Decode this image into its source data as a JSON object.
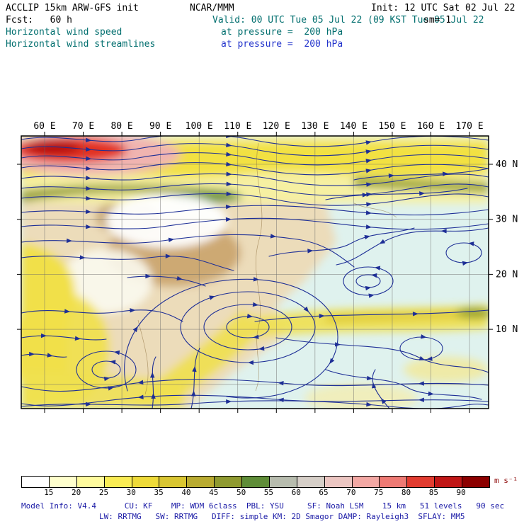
{
  "header": {
    "model": "ACCLIP 15km ARW-GFS init",
    "fcst": "Fcst:   60 h",
    "field1": "Horizontal wind speed",
    "field2": "Horizontal wind streamlines",
    "org": "NCAR/MMM",
    "valid": "Valid: 00 UTC Tue 05 Jul 22 (09 KST Tue 05 Jul 22",
    "at_pressure1": "at pressure =  200 hPa",
    "at_pressure2": "at pressure =  200 hPa",
    "init": "Init: 12 UTC Sat 02 Jul 22",
    "sm": "sm= 1"
  },
  "map": {
    "lon_ticks": [
      "60 E",
      "70 E",
      "80 E",
      "90 E",
      "100 E",
      "110 E",
      "120 E",
      "130 E",
      "140 E",
      "150 E",
      "160 E",
      "170 E"
    ],
    "lat_ticks": [
      "40 N",
      "30 N",
      "20 N",
      "10 N"
    ]
  },
  "colorbar": {
    "labels": [
      15,
      20,
      25,
      30,
      35,
      40,
      45,
      50,
      55,
      60,
      65,
      70,
      75,
      80,
      85,
      90
    ],
    "colors": [
      "#ffffff",
      "#ffffcd",
      "#fffb9e",
      "#f9ec54",
      "#eeda39",
      "#d9c632",
      "#b9ab31",
      "#8f9a30",
      "#5f8d38",
      "#b7bcae",
      "#d6cfc8",
      "#ecc6c2",
      "#f3a8a4",
      "#ee7a74",
      "#e23c30",
      "#c01616",
      "#8c0000"
    ],
    "units": "m s⁻¹"
  },
  "footer": {
    "line1": "Model Info: V4.4      CU: KF    MP: WDM 6class  PBL: YSU     SF: Noah LSM    15 km   51 levels   90 sec",
    "line2": "LW: RRTMG   SW: RRTMG   DIFF: simple KM: 2D Smagor DAMP: Rayleigh3  SFLAY: MM5"
  },
  "chart_data": {
    "type": "heatmap",
    "title": "Horizontal wind speed and streamlines at 200 hPa",
    "model": "ACCLIP 15km ARW-GFS",
    "init_time": "12 UTC Sat 02 Jul 22",
    "valid_time": "00 UTC Tue 05 Jul 22 (09 KST Tue 05 Jul 22)",
    "forecast_hour": 60,
    "x_axis": {
      "label": "longitude",
      "ticks": [
        "60 E",
        "70 E",
        "80 E",
        "90 E",
        "100 E",
        "110 E",
        "120 E",
        "130 E",
        "140 E",
        "150 E",
        "160 E",
        "170 E"
      ],
      "range": [
        "55 E",
        "180 E"
      ]
    },
    "y_axis": {
      "label": "latitude",
      "ticks": [
        "40 N",
        "30 N",
        "20 N",
        "10 N"
      ],
      "range": [
        "5 N",
        "45 N"
      ]
    },
    "fill_variable": "horizontal wind speed",
    "fill_units": "m s⁻¹",
    "fill_levels": [
      15,
      20,
      25,
      30,
      35,
      40,
      45,
      50,
      55,
      60,
      65,
      70,
      75,
      80,
      85,
      90
    ],
    "fill_colors": [
      "#ffffff",
      "#ffffcd",
      "#fffb9e",
      "#f9ec54",
      "#eeda39",
      "#d9c632",
      "#b9ab31",
      "#8f9a30",
      "#5f8d38",
      "#b7bcae",
      "#d6cfc8",
      "#ecc6c2",
      "#f3a8a4",
      "#ee7a74",
      "#e23c30",
      "#c01616",
      "#8c0000"
    ],
    "overlay": "horizontal wind streamlines (dark blue, arrowed)",
    "notable_features": [
      "strong westerly jet (>70 m s⁻¹) in the northwest corner near 55-75E, 42N",
      "broad yellow jet band (15-35 m s⁻¹) along the northern edge of the domain",
      "large anticyclonic circulation (South Asian High) centered near 110E, 28N",
      "mostly light winds (<15 m s⁻¹) over the western Pacific in the southeast"
    ]
  }
}
